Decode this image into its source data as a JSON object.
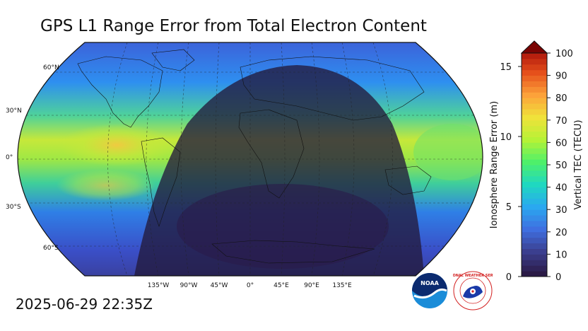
{
  "title": "GPS L1 Range Error from Total Electron Content",
  "timestamp": "2025-06-29 22:35Z",
  "map": {
    "lat_labels": [
      "60°N",
      "30°N",
      "0°",
      "30°S",
      "60°S"
    ],
    "lon_labels": [
      "135°W",
      "90°W",
      "45°W",
      "0°",
      "45°E",
      "90°E",
      "135°E"
    ],
    "night_overlay": true
  },
  "colorbar": {
    "tec_label": "Vertical TEC (TECU)",
    "range_label": "Ionosphere Range Error (m)",
    "tec_ticks": [
      "0",
      "10",
      "20",
      "30",
      "40",
      "50",
      "60",
      "70",
      "80",
      "90",
      "100"
    ],
    "range_ticks": [
      "0",
      "5",
      "10",
      "15"
    ],
    "extend": "max",
    "colors": [
      "#2b1a46",
      "#3b3f8f",
      "#3f6fe0",
      "#2aa8f0",
      "#1fd8c0",
      "#4ef06a",
      "#b5f236",
      "#f0e23a",
      "#fca23a",
      "#e5501b",
      "#a8100a",
      "#7a0403"
    ]
  },
  "logos": {
    "noaa": "NOAA",
    "nws_ring": "NATIONAL WEATHER SERVICE"
  }
}
